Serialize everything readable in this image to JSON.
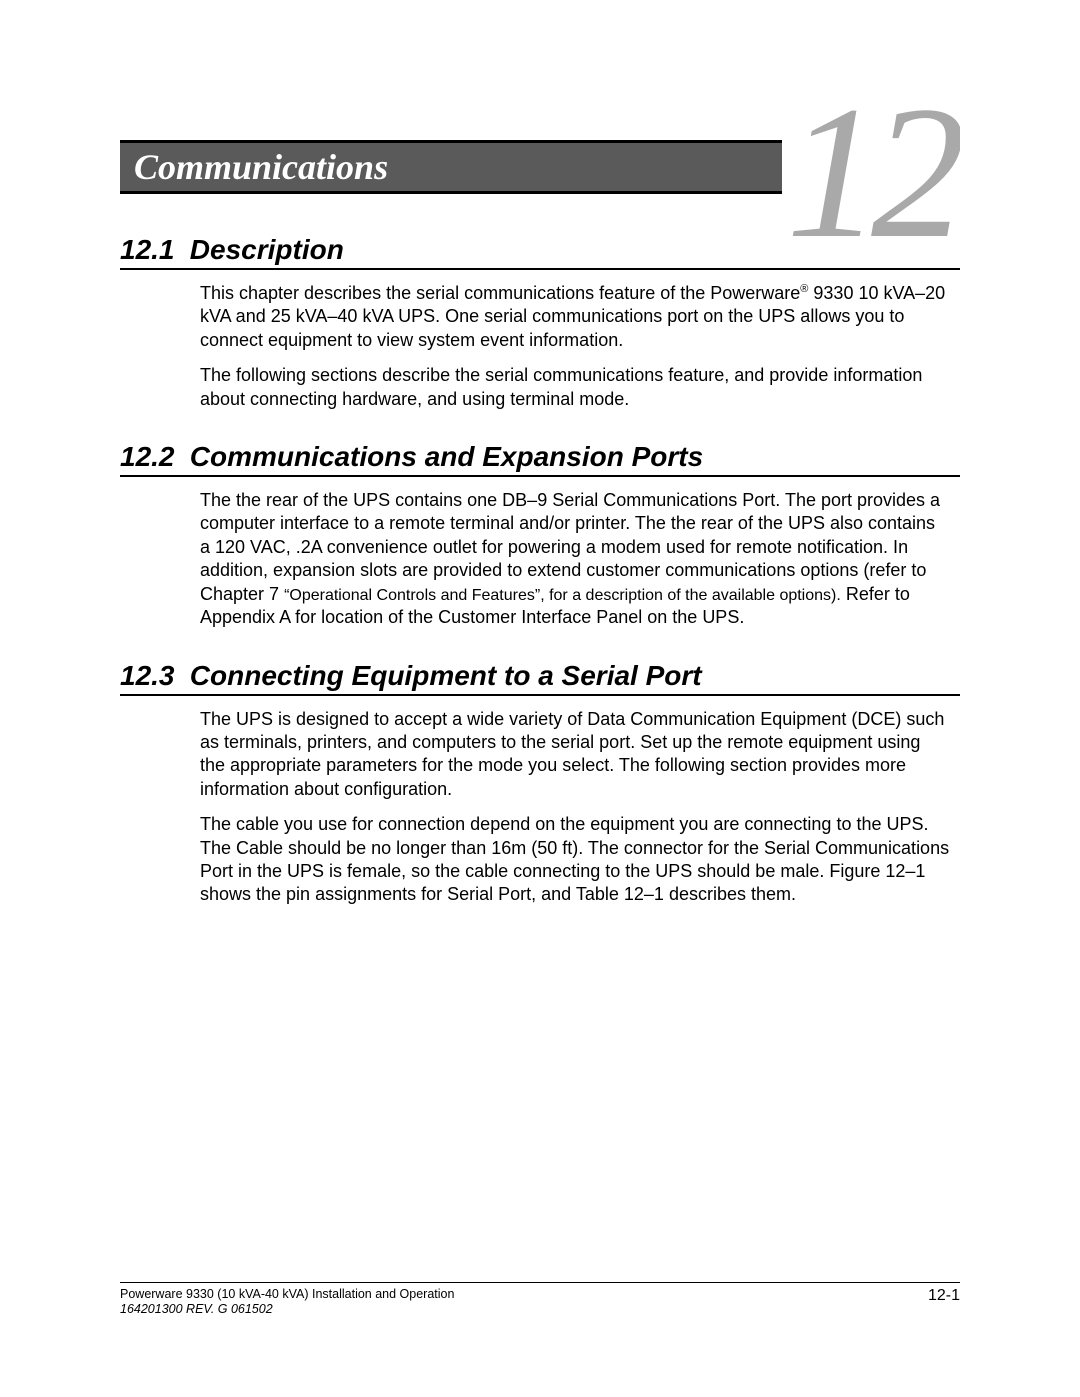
{
  "chapter": {
    "title": "Communications",
    "number": "12"
  },
  "sections": [
    {
      "num": "12.1",
      "title": "Description",
      "paragraphs": [
        "This chapter describes the serial communications feature of the Powerware® 9330 10 kVA–20 kVA and 25 kVA–40 kVA UPS. One serial communications port on the UPS allows you to connect equipment to view system event information.",
        "The following sections describe the serial communications feature, and provide information about connecting hardware, and using terminal mode."
      ]
    },
    {
      "num": "12.2",
      "title": "Communications and Expansion Ports",
      "paragraphs": [
        "The the rear of the UPS contains one DB–9 Serial Communications Port. The port provides a computer interface to a remote terminal and/or printer. The the rear of the UPS also contains a 120 VAC, .2A convenience outlet for powering a modem used for remote notification. In addition, expansion slots are provided to extend customer communications options (refer to Chapter 7 \"Operational Controls and Features\", for a description of the available options). Refer to Appendix A for location of the Customer Interface Panel on the UPS."
      ]
    },
    {
      "num": "12.3",
      "title": "Connecting Equipment to a Serial Port",
      "paragraphs": [
        "The UPS is designed to accept a wide variety of Data Communication Equipment (DCE) such as terminals, printers, and computers to the serial port. Set up the remote equipment using the appropriate parameters for the mode you select. The following section provides more information about configuration.",
        "The cable you use for connection depend on the equipment you are connecting to the UPS. The Cable should be no longer than 16m (50 ft). The connector for the Serial Communications Port in the UPS is female, so the cable connecting to the UPS should be male. Figure 12–1 shows the pin assignments for Serial Port, and Table 12–1 describes them."
      ]
    }
  ],
  "footer": {
    "line1": "Powerware 9330 (10 kVA-40 kVA) Installation and Operation",
    "line2": "164201300 REV. G  061502",
    "page": "12-1"
  },
  "colors": {
    "bar_bg": "#5a5a5a",
    "bar_text": "#ffffff",
    "chapter_num": "#a9a9a9",
    "text": "#000000",
    "rule": "#000000"
  }
}
